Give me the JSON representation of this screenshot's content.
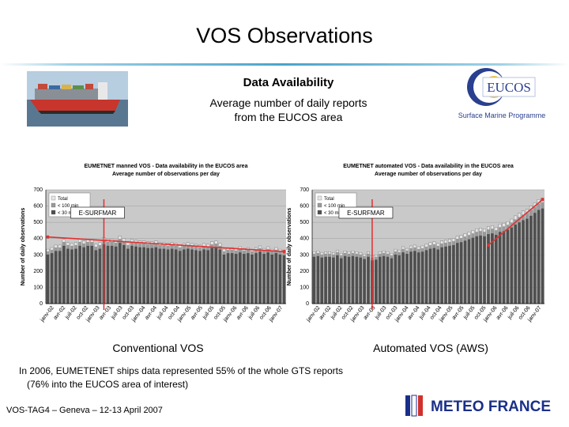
{
  "slide": {
    "title": "VOS Observations",
    "availability_heading": "Data Availability",
    "availability_sub_line1": "Average number of daily reports",
    "availability_sub_line2": "from the EUCOS area",
    "caption_left": "Conventional VOS",
    "caption_right": "Automated VOS (AWS)",
    "note_line1": "In 2006, EUMETENET ships data represented 55% of the whole GTS reports",
    "note_line2": "(76% into the EUCOS area of interest)",
    "footer": "VOS-TAG4 – Geneva – 12-13 April 2007"
  },
  "logos": {
    "eucos_text": "EUCOS",
    "eucos_tagline": "Surface Marine Programme",
    "meteo_france_text": "METEO FRANCE"
  },
  "colors": {
    "title_rule": "#4aa3c9",
    "bar_total": "#e6e6e6",
    "bar_lt100": "#9a9a9a",
    "bar_lt30": "#4f4f4f",
    "trend_line": "#e23030",
    "marker_line": "#e23030",
    "plot_bg": "#c9c9c9",
    "eucos_blue": "#2a3f8f",
    "meteo_blue": "#1a2f8a"
  },
  "chart_data": [
    {
      "type": "bar",
      "title_line1": "EUMETNET manned VOS - Data availability in the EUCOS area",
      "title_line2": "Average number of observations per day",
      "ylabel": "Number of daily observations",
      "ylim": [
        0,
        700
      ],
      "yticks": [
        0,
        100,
        200,
        300,
        400,
        500,
        600,
        700
      ],
      "legend": [
        "Total",
        "< 100 min",
        "< 30 min"
      ],
      "annotation": "E-SURFMAR",
      "annotation_marker_index": 14,
      "x_tick_labels": [
        "janv-02",
        "avr-02",
        "juil-02",
        "oct-02",
        "janv-03",
        "avr-03",
        "juil-03",
        "oct-03",
        "janv-04",
        "avr-04",
        "juil-04",
        "oct-04",
        "janv-05",
        "avr-05",
        "juil-05",
        "oct-05",
        "janv-06",
        "avr-06",
        "juil-06",
        "oct-06",
        "janv-07"
      ],
      "values_total": [
        335,
        345,
        360,
        360,
        395,
        375,
        370,
        375,
        395,
        385,
        395,
        395,
        365,
        375,
        405,
        395,
        395,
        390,
        415,
        400,
        375,
        395,
        390,
        385,
        385,
        380,
        380,
        385,
        375,
        375,
        370,
        375,
        370,
        360,
        370,
        375,
        370,
        365,
        360,
        370,
        365,
        380,
        385,
        370,
        335,
        345,
        345,
        340,
        350,
        340,
        345,
        335,
        345,
        355,
        340,
        350,
        335,
        345,
        335,
        330
      ],
      "trend": [
        [
          0,
          410
        ],
        [
          59,
          320
        ]
      ]
    },
    {
      "type": "bar",
      "title_line1": "EUMETNET automated VOS - Data availability in the EUCOS area",
      "title_line2": "Average number of observations per day",
      "ylabel": "Number of daily observations",
      "ylim": [
        0,
        700
      ],
      "yticks": [
        0,
        100,
        200,
        300,
        400,
        500,
        600,
        700
      ],
      "legend": [
        "Total",
        "< 100 min",
        "< 30 min"
      ],
      "annotation": "E-SURFMAR",
      "annotation_marker_index": 15,
      "x_tick_labels": [
        "janv-02",
        "avr-02",
        "juil-02",
        "oct-02",
        "janv-03",
        "avr-03",
        "juil-03",
        "oct-03",
        "janv-04",
        "avr-04",
        "juil-04",
        "oct-04",
        "janv-05",
        "avr-05",
        "juil-05",
        "oct-05",
        "janv-06",
        "avr-06",
        "juil-06",
        "oct-06",
        "janv-07"
      ],
      "values_total": [
        320,
        325,
        315,
        320,
        320,
        315,
        330,
        310,
        325,
        320,
        325,
        320,
        315,
        305,
        320,
        295,
        300,
        320,
        325,
        320,
        310,
        335,
        330,
        350,
        340,
        355,
        360,
        350,
        355,
        365,
        375,
        380,
        370,
        385,
        390,
        395,
        400,
        415,
        420,
        430,
        440,
        450,
        460,
        465,
        460,
        475,
        480,
        470,
        490,
        495,
        505,
        520,
        540,
        555,
        570,
        580,
        600,
        620,
        640,
        650
      ],
      "trend": [
        [
          45,
          360
        ],
        [
          59,
          640
        ]
      ]
    }
  ]
}
